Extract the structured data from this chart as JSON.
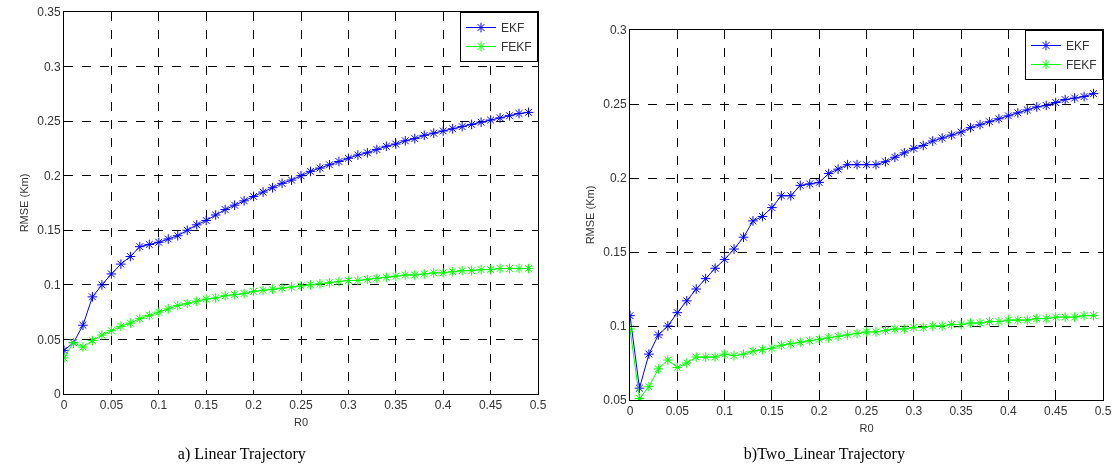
{
  "chart_data": [
    {
      "type": "line",
      "title": "a) Linear Trajectory",
      "xlabel": "R0",
      "ylabel": "RMSE (Km)",
      "x": [
        0,
        0.01,
        0.02,
        0.03,
        0.04,
        0.05,
        0.06,
        0.07,
        0.08,
        0.09,
        0.1,
        0.11,
        0.12,
        0.13,
        0.14,
        0.15,
        0.16,
        0.17,
        0.18,
        0.19,
        0.2,
        0.21,
        0.22,
        0.23,
        0.24,
        0.25,
        0.26,
        0.27,
        0.28,
        0.29,
        0.3,
        0.31,
        0.32,
        0.33,
        0.34,
        0.35,
        0.36,
        0.37,
        0.38,
        0.39,
        0.4,
        0.41,
        0.42,
        0.43,
        0.44,
        0.45,
        0.46,
        0.47,
        0.48,
        0.49
      ],
      "series": [
        {
          "name": "EKF",
          "color": "#0000ff",
          "values": [
            0.04,
            0.047,
            0.063,
            0.089,
            0.1,
            0.11,
            0.119,
            0.126,
            0.135,
            0.137,
            0.139,
            0.142,
            0.145,
            0.15,
            0.155,
            0.159,
            0.164,
            0.169,
            0.173,
            0.177,
            0.181,
            0.185,
            0.189,
            0.193,
            0.196,
            0.2,
            0.204,
            0.207,
            0.21,
            0.213,
            0.216,
            0.219,
            0.221,
            0.224,
            0.227,
            0.229,
            0.232,
            0.234,
            0.237,
            0.239,
            0.241,
            0.243,
            0.245,
            0.247,
            0.249,
            0.251,
            0.253,
            0.255,
            0.257,
            0.258
          ]
        },
        {
          "name": "FEKF",
          "color": "#00ff00",
          "values": [
            0.033,
            0.047,
            0.043,
            0.049,
            0.054,
            0.058,
            0.062,
            0.065,
            0.069,
            0.072,
            0.075,
            0.078,
            0.081,
            0.083,
            0.085,
            0.087,
            0.088,
            0.09,
            0.091,
            0.092,
            0.094,
            0.095,
            0.096,
            0.097,
            0.098,
            0.099,
            0.1,
            0.101,
            0.102,
            0.103,
            0.104,
            0.104,
            0.105,
            0.106,
            0.107,
            0.108,
            0.109,
            0.109,
            0.11,
            0.111,
            0.111,
            0.112,
            0.113,
            0.113,
            0.114,
            0.114,
            0.115,
            0.115,
            0.115,
            0.115
          ]
        }
      ],
      "xlim": [
        0,
        0.5
      ],
      "xticks": [
        0,
        0.05,
        0.1,
        0.15,
        0.2,
        0.25,
        0.3,
        0.35,
        0.4,
        0.45,
        0.5
      ],
      "ylim": [
        0,
        0.35
      ],
      "yticks": [
        0,
        0.05,
        0.1,
        0.15,
        0.2,
        0.25,
        0.3,
        0.35
      ],
      "grid": true,
      "legend": "top right",
      "marker": "cross",
      "line_style": "solid"
    },
    {
      "type": "line",
      "title": "b)Two_Linear Trajectory",
      "xlabel": "R0",
      "ylabel": "RMSE (Km)",
      "x": [
        0,
        0.01,
        0.02,
        0.03,
        0.04,
        0.05,
        0.06,
        0.07,
        0.08,
        0.09,
        0.1,
        0.11,
        0.12,
        0.13,
        0.14,
        0.15,
        0.16,
        0.17,
        0.18,
        0.19,
        0.2,
        0.21,
        0.22,
        0.23,
        0.24,
        0.25,
        0.26,
        0.27,
        0.28,
        0.29,
        0.3,
        0.31,
        0.32,
        0.33,
        0.34,
        0.35,
        0.36,
        0.37,
        0.38,
        0.39,
        0.4,
        0.41,
        0.42,
        0.43,
        0.44,
        0.45,
        0.46,
        0.47,
        0.48,
        0.49
      ],
      "series": [
        {
          "name": "EKF",
          "color": "#0000ff",
          "values": [
            0.107,
            0.058,
            0.081,
            0.094,
            0.1,
            0.109,
            0.117,
            0.125,
            0.132,
            0.139,
            0.145,
            0.152,
            0.16,
            0.171,
            0.174,
            0.18,
            0.188,
            0.188,
            0.195,
            0.196,
            0.197,
            0.203,
            0.206,
            0.209,
            0.209,
            0.209,
            0.209,
            0.211,
            0.214,
            0.217,
            0.22,
            0.222,
            0.225,
            0.227,
            0.229,
            0.231,
            0.234,
            0.236,
            0.238,
            0.24,
            0.242,
            0.244,
            0.246,
            0.248,
            0.249,
            0.251,
            0.253,
            0.254,
            0.255,
            0.257
          ]
        },
        {
          "name": "FEKF",
          "color": "#00ff00",
          "values": [
            0.098,
            0.051,
            0.059,
            0.071,
            0.077,
            0.072,
            0.075,
            0.079,
            0.079,
            0.079,
            0.081,
            0.08,
            0.081,
            0.083,
            0.084,
            0.085,
            0.087,
            0.088,
            0.089,
            0.09,
            0.091,
            0.092,
            0.093,
            0.094,
            0.095,
            0.096,
            0.096,
            0.097,
            0.098,
            0.098,
            0.099,
            0.099,
            0.1,
            0.1,
            0.101,
            0.101,
            0.102,
            0.102,
            0.103,
            0.103,
            0.104,
            0.104,
            0.104,
            0.105,
            0.105,
            0.106,
            0.106,
            0.106,
            0.107,
            0.107
          ]
        }
      ],
      "xlim": [
        0,
        0.5
      ],
      "xticks": [
        0,
        0.05,
        0.1,
        0.15,
        0.2,
        0.25,
        0.3,
        0.35,
        0.4,
        0.45,
        0.5
      ],
      "ylim": [
        0.05,
        0.3
      ],
      "yticks": [
        0.05,
        0.1,
        0.15,
        0.2,
        0.25,
        0.3
      ],
      "grid": true,
      "legend": "top right",
      "marker": "cross",
      "line_style": "solid"
    }
  ]
}
